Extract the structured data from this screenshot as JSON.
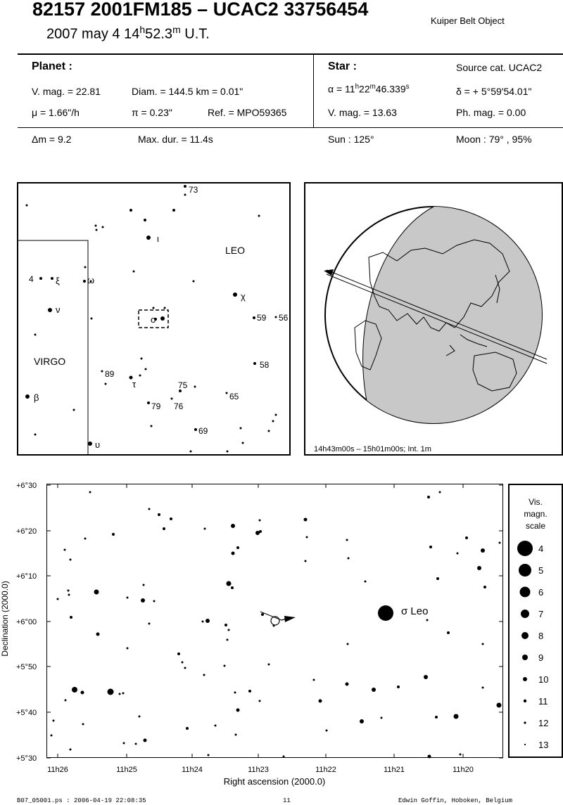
{
  "header": {
    "title": "82157 2001FM185  –  UCAC2 33756454",
    "date": "2007 may  4  14h52.3m U.T.",
    "date_parts": {
      "pre": "2007 may  4  14",
      "h": "h",
      "min": "52.3",
      "m": "m",
      "post": " U.T."
    },
    "object_type": "Kuiper Belt Object"
  },
  "planet": {
    "heading": "Planet :",
    "vmag": "V. mag. = 22.81",
    "diam": "Diam. = 144.5 km = 0.01\"",
    "mu": "μ =  1.66\"/h",
    "pi": "π =  0.23\"",
    "ref": "Ref. = MPO59365"
  },
  "star": {
    "heading": "Star :",
    "source_cat": "Source cat.  UCAC2",
    "alpha": {
      "pre": "α = 11",
      "h": "h",
      "mm": "22",
      "m": "m",
      "ss": "46.339",
      "s": "s"
    },
    "delta": "δ = + 5°59'54.01\"",
    "vmag": "V. mag. = 13.63",
    "phmag": "Ph. mag. =  0.00"
  },
  "bottom_row": {
    "dm": "Δm = 9.2",
    "maxdur": "Max. dur. = 11.4s",
    "sun": "Sun : 125°",
    "moon": "Moon :  79° , 95%"
  },
  "finder": {
    "labels": {
      "leo": "LEO",
      "virgo": "VIRGO",
      "iota": "ι",
      "xi": "ξ",
      "omega": "ω",
      "nu": "ν",
      "chi": "χ",
      "sigma": "σ",
      "tau": "τ",
      "beta": "β",
      "upsilon": "υ",
      "n4": "4",
      "n73": "73",
      "n59": "59",
      "n56": "56",
      "n58": "58",
      "n89": "89",
      "n75": "75",
      "n65": "65",
      "n79": "79",
      "n76": "76",
      "n69": "69"
    }
  },
  "globe": {
    "caption": "14h43m00s – 15h01m00s; Int.  1m"
  },
  "chart": {
    "y_ticks": [
      "+6°30",
      "+6°20",
      "+6°10",
      "+6°00",
      "+5°50",
      "+5°40",
      "+5°30"
    ],
    "x_ticks": [
      "11h26",
      "11h25",
      "11h24",
      "11h23",
      "11h22",
      "11h21",
      "11h20"
    ],
    "xlabel": "Right ascension (2000.0)",
    "ylabel": "Declination (2000.0)",
    "sigma_label": "σ Leo"
  },
  "legend": {
    "title_lines": [
      "Vis.",
      "magn.",
      "scale"
    ],
    "mags": [
      "4",
      "5",
      "6",
      "7",
      "8",
      "9",
      "10",
      "11",
      "12",
      "13"
    ]
  },
  "footer": {
    "file": "B07_05001.ps : 2006-04-19 22:08:35",
    "page": "11",
    "author": "Edwin Goffin, Hoboken, Belgium"
  }
}
